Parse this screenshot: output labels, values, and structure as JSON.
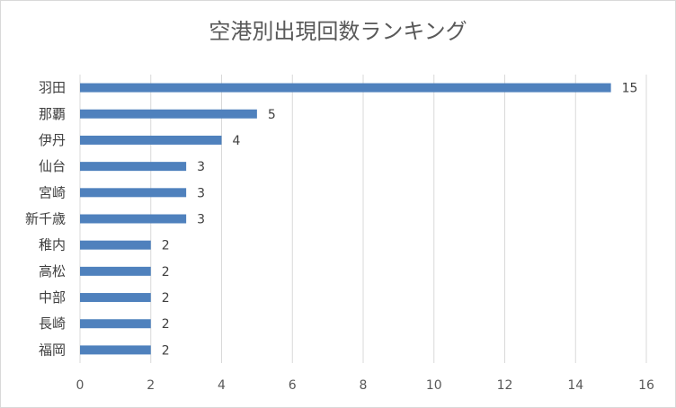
{
  "chart_data": {
    "type": "bar",
    "orientation": "horizontal",
    "title": "空港別出現回数ランキング",
    "xlabel": "",
    "ylabel": "",
    "categories": [
      "羽田",
      "那覇",
      "伊丹",
      "仙台",
      "宮崎",
      "新千歳",
      "稚内",
      "高松",
      "中部",
      "長崎",
      "福岡"
    ],
    "values": [
      15,
      5,
      4,
      3,
      3,
      3,
      2,
      2,
      2,
      2,
      2
    ],
    "xlim": [
      0,
      16
    ],
    "xticks": [
      0,
      2,
      4,
      6,
      8,
      10,
      12,
      14,
      16
    ],
    "data_labels": true,
    "grid": "vertical",
    "legend": "none",
    "colors": {
      "bar": "#4f81bd",
      "grid": "#d9d9d9",
      "text": "#595959",
      "label": "#404040"
    }
  }
}
